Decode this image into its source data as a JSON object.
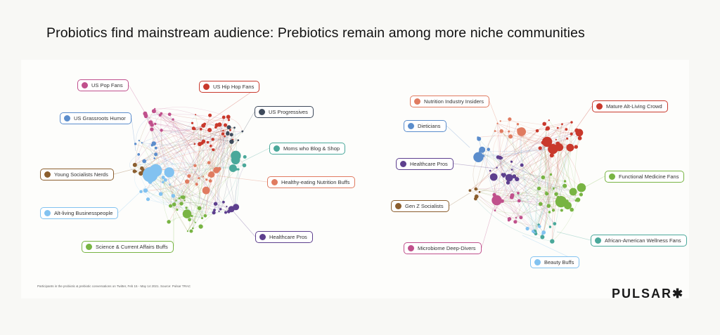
{
  "title": "Probiotics find mainstream audience: Prebiotics remain among more niche communities",
  "footnote": "Participants in the probiotic & prebiotic conversations on Twitter, Feb 15 - May 14 2021. Source: Pulsar TRAC",
  "logo": "PULSAR✱",
  "colors": {
    "magenta": "#c0508c",
    "red": "#c9392c",
    "blue": "#5b8dcc",
    "slate": "#3e4a5b",
    "teal": "#4aa89a",
    "brown": "#8b5e2e",
    "salmon": "#e07b60",
    "lightblue": "#82c2f0",
    "green": "#78b443",
    "purple": "#5d3f8e"
  },
  "networks": [
    {
      "name": "probiotics",
      "communities": [
        {
          "label": "US Pop Fans",
          "color": "magenta"
        },
        {
          "label": "US Hip Hop Fans",
          "color": "red"
        },
        {
          "label": "US Grassroots Humor",
          "color": "blue"
        },
        {
          "label": "US Progressives",
          "color": "slate"
        },
        {
          "label": "Moms who Blog & Shop",
          "color": "teal"
        },
        {
          "label": "Young Socialists Nerds",
          "color": "brown"
        },
        {
          "label": "Healthy-eating Nutrition Buffs",
          "color": "salmon"
        },
        {
          "label": "Alt-living Businesspeople",
          "color": "lightblue"
        },
        {
          "label": "Science & Current Affairs Buffs",
          "color": "green"
        },
        {
          "label": "Healthcare Pros",
          "color": "purple"
        }
      ]
    },
    {
      "name": "prebiotics",
      "communities": [
        {
          "label": "Nutrition Industry Insiders",
          "color": "salmon"
        },
        {
          "label": "Mature Alt-Living Crowd",
          "color": "red"
        },
        {
          "label": "Dieticians",
          "color": "blue"
        },
        {
          "label": "Healthcare Pros",
          "color": "purple"
        },
        {
          "label": "Functional Medicine Fans",
          "color": "green"
        },
        {
          "label": "Gen Z Socialists",
          "color": "brown"
        },
        {
          "label": "African-American Wellness Fans",
          "color": "teal"
        },
        {
          "label": "Microbiome Deep-Divers",
          "color": "magenta"
        },
        {
          "label": "Beauty Buffs",
          "color": "lightblue"
        }
      ]
    }
  ]
}
